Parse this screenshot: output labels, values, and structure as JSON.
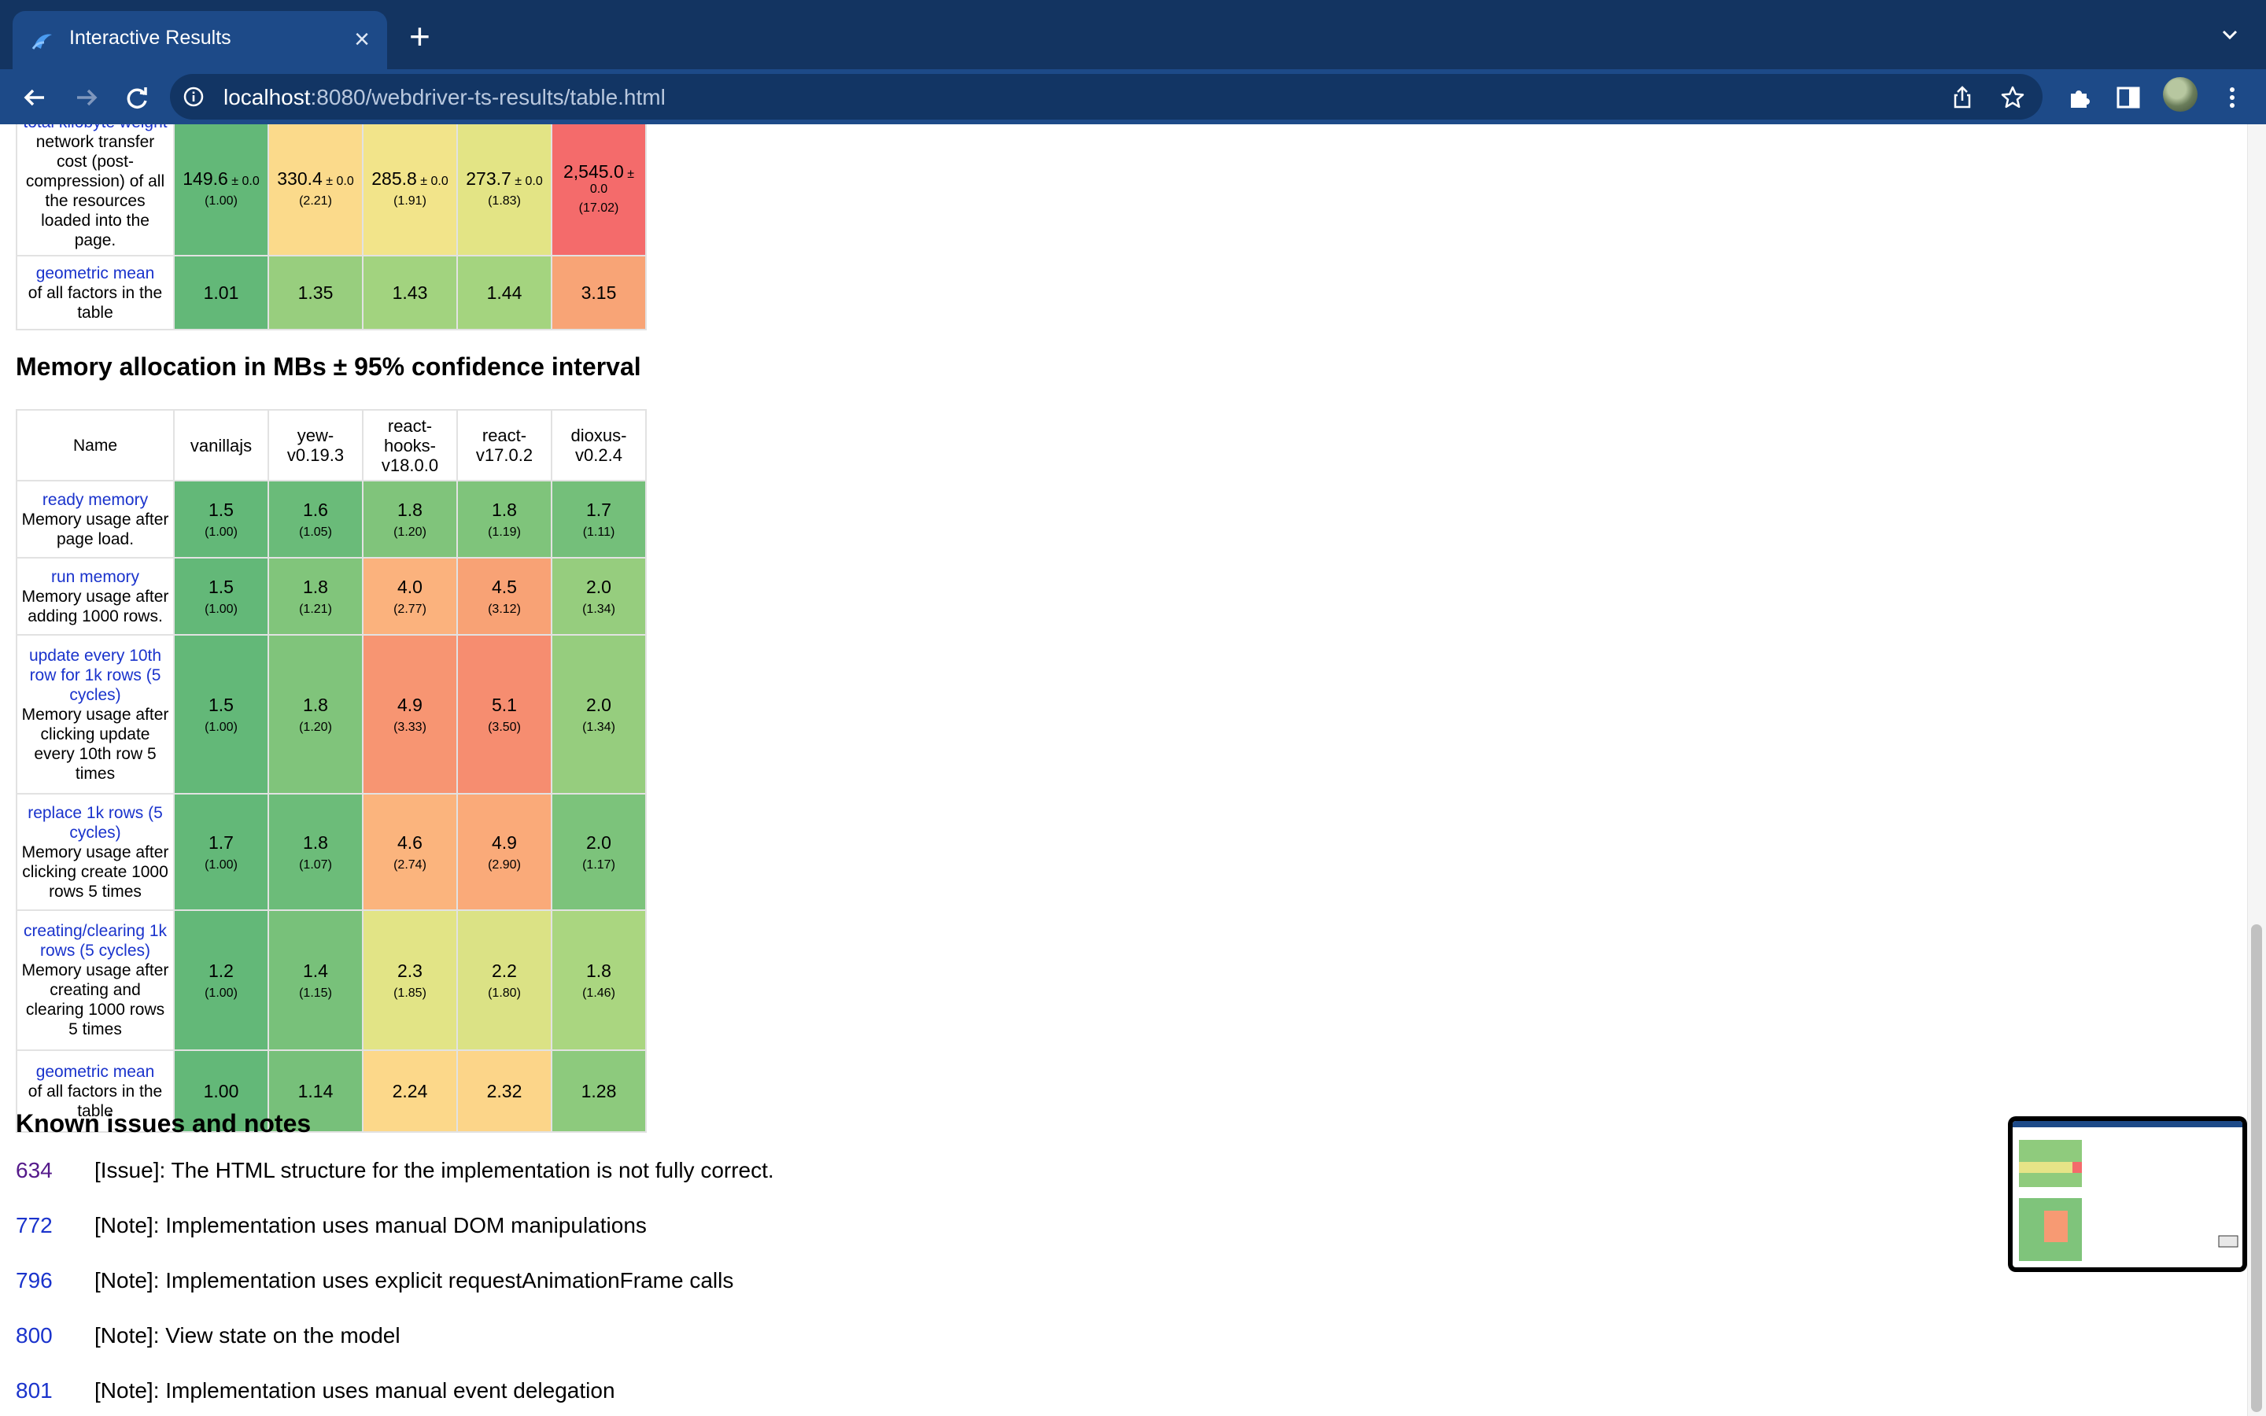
{
  "browser": {
    "tab_title": "Interactive Results",
    "url_host": "localhost",
    "url_path": ":8080/webdriver-ts-results/table.html"
  },
  "colors": {
    "tab_bar": "#133461",
    "toolbar": "#1d4a88",
    "link": "#1a33cc",
    "visited_link": "#551a8b"
  },
  "top_table": {
    "rows": [
      {
        "name": "total kilobyte weight",
        "desc": "network transfer cost (post-compression) of all the resources loaded into the page.",
        "cells": [
          {
            "v": "149.6",
            "ci": "± 0.0",
            "f": "(1.00)",
            "color": "#63b878"
          },
          {
            "v": "330.4",
            "ci": "± 0.0",
            "f": "(2.21)",
            "color": "#fbda8b"
          },
          {
            "v": "285.8",
            "ci": "± 0.0",
            "f": "(1.91)",
            "color": "#f2e48a"
          },
          {
            "v": "273.7",
            "ci": "± 0.0",
            "f": "(1.83)",
            "color": "#e3e485"
          },
          {
            "v": "2,545.0",
            "ci": "±",
            "ci2": "0.0",
            "f": "(17.02)",
            "color": "#f46b6b"
          }
        ]
      },
      {
        "name": "geometric mean",
        "desc": "of all factors in the table",
        "cells": [
          {
            "v": "1.01",
            "color": "#63b878"
          },
          {
            "v": "1.35",
            "color": "#98ce7e"
          },
          {
            "v": "1.43",
            "color": "#a2d37f"
          },
          {
            "v": "1.44",
            "color": "#a4d47f"
          },
          {
            "v": "3.15",
            "color": "#f8a476"
          }
        ]
      }
    ]
  },
  "memory_section": {
    "heading": "Memory allocation in MBs ± 95% confidence interval",
    "header": {
      "name": "Name",
      "frameworks": [
        "vanillajs",
        "yew-v0.19.3",
        "react-hooks-v18.0.0",
        "react-v17.0.2",
        "dioxus-v0.2.4"
      ],
      "frameworks_display": [
        [
          "vanillajs"
        ],
        [
          "yew-",
          "v0.19.3"
        ],
        [
          "react-",
          "hooks-",
          "v18.0.0"
        ],
        [
          "react-",
          "v17.0.2"
        ],
        [
          "dioxus-",
          "v0.2.4"
        ]
      ]
    },
    "rows": [
      {
        "name": "ready memory",
        "desc": "Memory usage after page load.",
        "cells": [
          {
            "v": "1.5",
            "f": "(1.00)",
            "color": "#63b878"
          },
          {
            "v": "1.6",
            "f": "(1.05)",
            "color": "#6abb79"
          },
          {
            "v": "1.8",
            "f": "(1.20)",
            "color": "#80c47b"
          },
          {
            "v": "1.8",
            "f": "(1.19)",
            "color": "#7fc47b"
          },
          {
            "v": "1.7",
            "f": "(1.11)",
            "color": "#74bf7a"
          }
        ]
      },
      {
        "name": "run memory",
        "desc": "Memory usage after adding 1000 rows.",
        "cells": [
          {
            "v": "1.5",
            "f": "(1.00)",
            "color": "#63b878"
          },
          {
            "v": "1.8",
            "f": "(1.21)",
            "color": "#81c57b"
          },
          {
            "v": "4.0",
            "f": "(2.77)",
            "color": "#fbb27d"
          },
          {
            "v": "4.5",
            "f": "(3.12)",
            "color": "#f8a275"
          },
          {
            "v": "2.0",
            "f": "(1.34)",
            "color": "#96cd7e"
          }
        ]
      },
      {
        "name": "update every 10th row for 1k rows (5 cycles)",
        "desc": "Memory usage after clicking update every 10th row 5 times",
        "cells": [
          {
            "v": "1.5",
            "f": "(1.00)",
            "color": "#63b878"
          },
          {
            "v": "1.8",
            "f": "(1.20)",
            "color": "#80c47b"
          },
          {
            "v": "4.9",
            "f": "(3.33)",
            "color": "#f79572"
          },
          {
            "v": "5.1",
            "f": "(3.50)",
            "color": "#f68d70"
          },
          {
            "v": "2.0",
            "f": "(1.34)",
            "color": "#96cd7e"
          }
        ]
      },
      {
        "name": "replace 1k rows (5 cycles)",
        "desc": "Memory usage after clicking create 1000 rows 5 times",
        "cells": [
          {
            "v": "1.7",
            "f": "(1.00)",
            "color": "#63b878"
          },
          {
            "v": "1.8",
            "f": "(1.07)",
            "color": "#6cbc79"
          },
          {
            "v": "4.6",
            "f": "(2.74)",
            "color": "#fbb47d"
          },
          {
            "v": "4.9",
            "f": "(2.90)",
            "color": "#faaa79"
          },
          {
            "v": "2.0",
            "f": "(1.17)",
            "color": "#7cc37b"
          }
        ]
      },
      {
        "name": "creating/clearing 1k rows (5 cycles)",
        "desc": "Memory usage after creating and clearing 1000 rows 5 times",
        "cells": [
          {
            "v": "1.2",
            "f": "(1.00)",
            "color": "#63b878"
          },
          {
            "v": "1.4",
            "f": "(1.15)",
            "color": "#78c17a"
          },
          {
            "v": "2.3",
            "f": "(1.85)",
            "color": "#e2e486"
          },
          {
            "v": "2.2",
            "f": "(1.80)",
            "color": "#dbe285"
          },
          {
            "v": "1.8",
            "f": "(1.46)",
            "color": "#aad680"
          }
        ]
      },
      {
        "name": "geometric mean",
        "desc": "of all factors in the table",
        "cells": [
          {
            "v": "1.00",
            "color": "#63b878"
          },
          {
            "v": "1.14",
            "color": "#77c07a"
          },
          {
            "v": "2.24",
            "color": "#fcd88a"
          },
          {
            "v": "2.32",
            "color": "#fcd589"
          },
          {
            "v": "1.28",
            "color": "#8dca7d"
          }
        ]
      }
    ]
  },
  "issues_section": {
    "heading": "Known issues and notes",
    "items": [
      {
        "num": "634",
        "text": "[Issue]: The HTML structure for the implementation is not fully correct.",
        "visited": true
      },
      {
        "num": "772",
        "text": "[Note]: Implementation uses manual DOM manipulations",
        "visited": false
      },
      {
        "num": "796",
        "text": "[Note]: Implementation uses explicit requestAnimationFrame calls",
        "visited": false
      },
      {
        "num": "800",
        "text": "[Note]: View state on the model",
        "visited": false
      },
      {
        "num": "801",
        "text": "[Note]: Implementation uses manual event delegation",
        "visited": false
      }
    ]
  }
}
